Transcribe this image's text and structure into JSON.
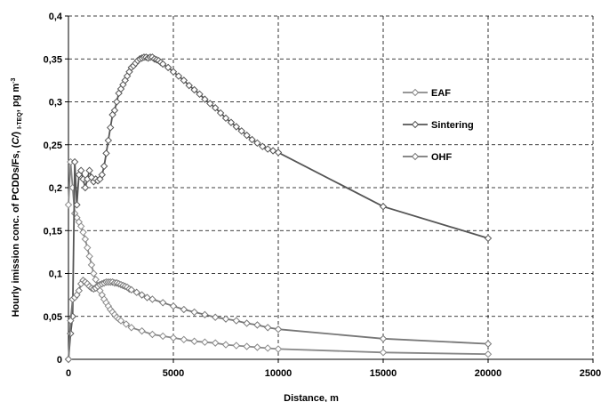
{
  "chart_data": {
    "type": "line",
    "xlabel": "Distance, m",
    "ylabel": {
      "main": "Hourly  imission conc.  of  PCDDs/Fs, (",
      "italic": "C/",
      "close": ") ",
      "sub": "I-TEQ",
      "after_sub": ", pg m",
      "sup": "-3"
    },
    "xlim": [
      0,
      25000
    ],
    "ylim": [
      0,
      0.4
    ],
    "x_ticks": [
      "0",
      "5000",
      "10000",
      "15000",
      "20000",
      "25000"
    ],
    "y_ticks": [
      "0",
      "0,05",
      "0,1",
      "0,15",
      "0,2",
      "0,25",
      "0,3",
      "0,35",
      "0,4"
    ],
    "grid": "dashed, both axes",
    "legend_position": "right, inside plot",
    "series": [
      {
        "name": "EAF",
        "color": "#888888",
        "marker": "diamond",
        "x": [
          0,
          100,
          200,
          300,
          400,
          500,
          600,
          700,
          800,
          900,
          1000,
          1100,
          1200,
          1300,
          1400,
          1500,
          1600,
          1700,
          1800,
          1900,
          2000,
          2100,
          2200,
          2300,
          2400,
          2500,
          2750,
          3000,
          3500,
          4000,
          4500,
          5000,
          5500,
          6000,
          6500,
          7000,
          7500,
          8000,
          8500,
          9000,
          9500,
          10000,
          15000,
          20000
        ],
        "y": [
          0.18,
          0.23,
          0.2,
          0.17,
          0.165,
          0.16,
          0.155,
          0.148,
          0.14,
          0.13,
          0.12,
          0.11,
          0.1,
          0.093,
          0.086,
          0.08,
          0.075,
          0.07,
          0.066,
          0.062,
          0.058,
          0.055,
          0.052,
          0.049,
          0.047,
          0.045,
          0.041,
          0.037,
          0.033,
          0.029,
          0.027,
          0.025,
          0.023,
          0.021,
          0.02,
          0.019,
          0.017,
          0.016,
          0.015,
          0.014,
          0.013,
          0.012,
          0.008,
          0.006
        ]
      },
      {
        "name": "Sintering",
        "color": "#555555",
        "marker": "diamond",
        "x": [
          0,
          100,
          200,
          300,
          400,
          500,
          600,
          700,
          800,
          900,
          1000,
          1100,
          1200,
          1300,
          1400,
          1500,
          1600,
          1700,
          1800,
          1900,
          2000,
          2100,
          2200,
          2300,
          2400,
          2500,
          2600,
          2700,
          2800,
          2900,
          3000,
          3100,
          3200,
          3300,
          3400,
          3500,
          3600,
          3700,
          3800,
          3900,
          4000,
          4100,
          4200,
          4300,
          4400,
          4500,
          4750,
          5000,
          5250,
          5500,
          5750,
          6000,
          6250,
          6500,
          6750,
          7000,
          7250,
          7500,
          7750,
          8000,
          8250,
          8500,
          8750,
          9000,
          9250,
          9500,
          9750,
          10000,
          15000,
          20000
        ],
        "y": [
          0,
          0.03,
          0.05,
          0.23,
          0.18,
          0.215,
          0.22,
          0.21,
          0.2,
          0.21,
          0.22,
          0.212,
          0.207,
          0.21,
          0.208,
          0.21,
          0.215,
          0.225,
          0.24,
          0.255,
          0.27,
          0.285,
          0.29,
          0.3,
          0.31,
          0.315,
          0.32,
          0.325,
          0.33,
          0.335,
          0.34,
          0.342,
          0.345,
          0.348,
          0.35,
          0.351,
          0.352,
          0.352,
          0.351,
          0.352,
          0.352,
          0.35,
          0.349,
          0.348,
          0.346,
          0.344,
          0.34,
          0.335,
          0.33,
          0.325,
          0.319,
          0.314,
          0.309,
          0.303,
          0.298,
          0.293,
          0.287,
          0.281,
          0.276,
          0.271,
          0.266,
          0.261,
          0.256,
          0.252,
          0.248,
          0.245,
          0.243,
          0.241,
          0.178,
          0.141
        ]
      },
      {
        "name": "OHF",
        "color": "#777777",
        "marker": "diamond",
        "x": [
          0,
          100,
          200,
          300,
          400,
          500,
          600,
          700,
          800,
          900,
          1000,
          1100,
          1200,
          1300,
          1400,
          1500,
          1600,
          1700,
          1800,
          1900,
          2000,
          2100,
          2200,
          2300,
          2400,
          2500,
          2600,
          2700,
          2800,
          2900,
          3000,
          3250,
          3500,
          3750,
          4000,
          4500,
          5000,
          5500,
          6000,
          6500,
          7000,
          7500,
          8000,
          8500,
          9000,
          9500,
          10000,
          15000,
          20000
        ],
        "y": [
          0,
          0.045,
          0.07,
          0.072,
          0.075,
          0.08,
          0.088,
          0.092,
          0.09,
          0.088,
          0.085,
          0.083,
          0.082,
          0.083,
          0.085,
          0.087,
          0.088,
          0.089,
          0.09,
          0.09,
          0.09,
          0.09,
          0.089,
          0.089,
          0.088,
          0.087,
          0.086,
          0.085,
          0.084,
          0.082,
          0.081,
          0.078,
          0.075,
          0.072,
          0.07,
          0.066,
          0.062,
          0.058,
          0.055,
          0.052,
          0.049,
          0.047,
          0.045,
          0.042,
          0.04,
          0.037,
          0.035,
          0.024,
          0.018
        ]
      }
    ]
  }
}
